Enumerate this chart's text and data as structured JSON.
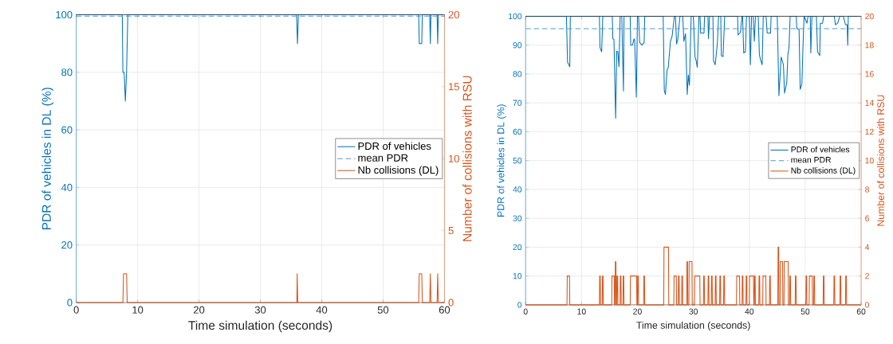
{
  "chart_data": [
    {
      "type": "line",
      "xlabel": "Time simulation (seconds)",
      "ylabel": "PDR of vehicles in DL (%)",
      "y2label": "Number of collisions with RSU",
      "xlim": [
        0,
        60
      ],
      "xticks": [
        0,
        10,
        20,
        30,
        40,
        50,
        60
      ],
      "ylim": [
        0,
        100
      ],
      "yticks": [
        0,
        20,
        40,
        60,
        80,
        100
      ],
      "y2lim": [
        0,
        20
      ],
      "y2ticks": [
        0,
        5,
        10,
        15,
        20
      ],
      "grid": true,
      "legend": "right",
      "series": [
        {
          "name": "PDR of vehicles",
          "color": "#0072bd",
          "line_style": "solid",
          "x": [
            0,
            7.5,
            7.6,
            7.8,
            8.0,
            8.2,
            8.4,
            35.9,
            36.05,
            36.2,
            55.8,
            55.9,
            56.3,
            56.4,
            57.6,
            57.7,
            57.8,
            58.8,
            58.9,
            59.0,
            60
          ],
          "values": [
            100,
            100,
            80,
            80,
            70,
            80,
            100,
            100,
            90,
            100,
            100,
            90,
            90,
            100,
            100,
            90,
            100,
            100,
            90,
            100,
            100
          ]
        },
        {
          "name": "mean PDR",
          "color": "#4a9ad6",
          "line_style": "dashed",
          "x": [
            0,
            60
          ],
          "values": [
            99.5,
            99.5
          ]
        },
        {
          "name": "Nb collisions (DL)",
          "color": "#d95319",
          "line_style": "solid",
          "axis": "y2",
          "x": [
            0,
            7.6,
            7.7,
            8.2,
            8.3,
            35.95,
            36.0,
            36.1,
            55.8,
            55.9,
            56.3,
            56.4,
            57.6,
            57.7,
            57.8,
            58.8,
            58.9,
            59.0,
            60
          ],
          "values": [
            0,
            0,
            2,
            2,
            0,
            0,
            2,
            0,
            0,
            2,
            2,
            0,
            0,
            2,
            0,
            0,
            2,
            0,
            0
          ]
        }
      ]
    },
    {
      "type": "line",
      "xlabel": "Time simulation (seconds)",
      "ylabel": "PDR of vehicles in DL (%)",
      "y2label": "Number of collisions with RSU",
      "xlim": [
        0,
        60
      ],
      "xticks": [
        0,
        10,
        20,
        30,
        40,
        50,
        60
      ],
      "ylim": [
        0,
        100
      ],
      "yticks": [
        0,
        10,
        20,
        30,
        40,
        50,
        60,
        70,
        80,
        90,
        100
      ],
      "y2lim": [
        0,
        20
      ],
      "y2ticks": [
        0,
        2,
        4,
        6,
        8,
        10,
        12,
        14,
        16,
        18,
        20
      ],
      "grid": true,
      "legend": "right",
      "series": [
        {
          "name": "PDR of vehicles",
          "color": "#0072bd",
          "line_style": "solid",
          "x": [
            0,
            7.3,
            7.5,
            7.9,
            8.0,
            13.2,
            13.3,
            13.6,
            13.8,
            15.5,
            15.6,
            15.8,
            16.1,
            16.3,
            16.5,
            16.7,
            16.9,
            17.2,
            17.5,
            17.6,
            18.7,
            18.8,
            19.1,
            19.4,
            19.5,
            19.8,
            20.0,
            20.2,
            20.4,
            20.8,
            21.2,
            21.3,
            24.6,
            24.8,
            25.0,
            25.3,
            25.5,
            25.9,
            26.2,
            26.6,
            26.8,
            27.0,
            27.2,
            27.6,
            28.1,
            28.3,
            28.6,
            28.9,
            29.1,
            29.3,
            29.6,
            30.0,
            30.3,
            30.5,
            30.7,
            31.0,
            31.2,
            31.3,
            31.9,
            32.0,
            32.6,
            32.7,
            32.9,
            33.5,
            33.6,
            33.9,
            34.3,
            34.5,
            34.9,
            35.0,
            35.3,
            35.6,
            37.9,
            38.0,
            38.4,
            38.7,
            38.8,
            39.0,
            39.3,
            39.5,
            40.0,
            40.2,
            40.4,
            40.7,
            40.9,
            41.1,
            41.6,
            41.8,
            42.0,
            42.3,
            42.5,
            43.0,
            43.2,
            43.8,
            43.9,
            45.0,
            45.3,
            45.7,
            46.1,
            46.3,
            46.7,
            46.9,
            47.1,
            47.3,
            48.4,
            48.5,
            48.9,
            49.1,
            49.4,
            49.7,
            49.8,
            50.3,
            50.5,
            50.9,
            51.0,
            51.2,
            52.0,
            52.2,
            52.6,
            52.7,
            53.1,
            53.3,
            55.2,
            55.4,
            55.8,
            56.2,
            56.8,
            57.2,
            57.5,
            57.6,
            57.7,
            60
          ],
          "values": [
            100,
            100,
            84.1,
            82.5,
            100,
            100,
            89.2,
            87.7,
            100,
            100,
            92.2,
            92,
            64.7,
            87.9,
            87.7,
            82.5,
            100,
            100,
            74.1,
            100,
            100,
            90,
            90,
            92.2,
            91.8,
            72,
            100,
            100,
            90.9,
            90,
            90.9,
            100,
            100,
            74.3,
            72.9,
            81.4,
            82.1,
            91.3,
            93.1,
            100,
            100,
            90.4,
            91.8,
            100,
            100,
            91.3,
            94.0,
            72.9,
            79.6,
            76.1,
            100,
            100,
            85.9,
            84.6,
            82.3,
            100,
            100,
            94.2,
            94.2,
            100,
            100,
            92.2,
            100,
            100,
            84.6,
            83.2,
            90.9,
            100,
            100,
            86.4,
            86,
            100,
            100,
            93.5,
            94.4,
            100,
            100,
            87.3,
            87.7,
            100,
            100,
            83.2,
            100,
            100,
            91.3,
            100,
            100,
            86.8,
            85,
            83.2,
            100,
            100,
            94.2,
            94.2,
            100,
            100,
            72.5,
            85.9,
            83.2,
            73.4,
            77,
            86.8,
            89.1,
            100,
            100,
            95.8,
            95.4,
            74.7,
            76.5,
            95.8,
            100,
            97.6,
            100,
            100,
            87.3,
            100,
            100,
            87.7,
            86.4,
            97.6,
            97.6,
            100,
            100,
            97.1,
            97.6,
            100,
            100,
            97.1,
            97.1,
            90,
            100,
            100
          ]
        },
        {
          "name": "mean PDR",
          "color": "#4a9ad6",
          "line_style": "dashed",
          "x": [
            0,
            60
          ],
          "values": [
            95.7,
            95.7
          ]
        },
        {
          "name": "Nb collisions (DL)",
          "color": "#d95319",
          "line_style": "solid",
          "axis": "y2",
          "x": [
            0,
            7.4,
            7.45,
            7.85,
            7.9,
            13.2,
            13.25,
            13.35,
            13.4,
            13.7,
            13.75,
            13.85,
            13.9,
            15.4,
            15.45,
            15.85,
            15.9,
            16.0,
            16.05,
            16.15,
            16.2,
            16.3,
            16.35,
            16.45,
            16.5,
            16.9,
            16.95,
            17.05,
            17.1,
            17.4,
            17.45,
            17.55,
            17.6,
            18.7,
            18.75,
            19.85,
            19.9,
            20.0,
            20.05,
            20.15,
            20.2,
            21.1,
            21.15,
            21.25,
            21.3,
            24.7,
            24.75,
            25.55,
            25.6,
            26.5,
            26.55,
            26.95,
            27.0,
            27.3,
            27.35,
            27.45,
            27.5,
            27.9,
            27.95,
            28.05,
            28.1,
            28.8,
            28.85,
            28.95,
            29.0,
            29.2,
            29.25,
            29.75,
            29.8,
            30.2,
            30.25,
            31.15,
            31.2,
            31.8,
            31.85,
            31.95,
            32.0,
            32.6,
            32.65,
            32.75,
            32.8,
            33.2,
            33.25,
            33.35,
            33.4,
            33.9,
            33.95,
            34.05,
            34.1,
            34.7,
            34.75,
            34.85,
            34.9,
            35.4,
            35.45,
            35.55,
            35.6,
            37.7,
            37.75,
            38.25,
            38.3,
            38.7,
            38.75,
            38.85,
            38.9,
            39.4,
            39.45,
            39.55,
            39.6,
            40.0,
            40.05,
            40.75,
            40.8,
            40.9,
            40.95,
            41.05,
            41.1,
            41.7,
            41.75,
            41.85,
            41.9,
            42.4,
            42.45,
            42.95,
            43.0,
            43.6,
            43.65,
            43.75,
            43.8,
            45.1,
            45.15,
            45.25,
            45.3,
            45.5,
            45.55,
            45.95,
            46.0,
            46.2,
            46.25,
            46.95,
            47.0,
            47.2,
            47.25,
            47.35,
            47.4,
            48.2,
            48.25,
            48.35,
            48.4,
            50.1,
            50.15,
            50.25,
            50.3,
            50.7,
            50.75,
            51.25,
            51.3,
            51.5,
            51.55,
            51.65,
            51.7,
            53.2,
            53.25,
            53.35,
            53.4,
            55.1,
            55.15,
            55.25,
            55.3,
            56.2,
            56.25,
            56.35,
            56.4,
            57.2,
            57.25,
            57.35,
            57.4,
            60
          ],
          "values": [
            0,
            0,
            2,
            2,
            0,
            0,
            2,
            2,
            0,
            0,
            2,
            2,
            0,
            0,
            2,
            2,
            0,
            0,
            3,
            3,
            0,
            0,
            2,
            2,
            0,
            0,
            2,
            2,
            0,
            0,
            2,
            2,
            0,
            0,
            2,
            2,
            0,
            0,
            2,
            2,
            0,
            0,
            2,
            2,
            0,
            0,
            4,
            4,
            0,
            0,
            2,
            2,
            0,
            0,
            2,
            2,
            0,
            0,
            2,
            2,
            0,
            0,
            3,
            3,
            0,
            0,
            3,
            3,
            0,
            0,
            2,
            2,
            0,
            0,
            2,
            2,
            0,
            0,
            2,
            2,
            0,
            0,
            2,
            2,
            0,
            0,
            2,
            2,
            0,
            0,
            2,
            2,
            0,
            0,
            2,
            2,
            0,
            0,
            2,
            2,
            0,
            0,
            2,
            2,
            0,
            0,
            2,
            2,
            0,
            0,
            2,
            2,
            0,
            0,
            2,
            2,
            0,
            0,
            2,
            2,
            0,
            0,
            2,
            2,
            0,
            0,
            2,
            2,
            0,
            0,
            4,
            4,
            0,
            0,
            3,
            3,
            0,
            0,
            3,
            3,
            0,
            0,
            2,
            2,
            0,
            0,
            2,
            2,
            0,
            0,
            2,
            2,
            0,
            0,
            2,
            2,
            0,
            0,
            2,
            2,
            0,
            0,
            2,
            2,
            0,
            0,
            2,
            2,
            0,
            0,
            2,
            2,
            0,
            0,
            2,
            2,
            0,
            0
          ]
        }
      ]
    }
  ]
}
